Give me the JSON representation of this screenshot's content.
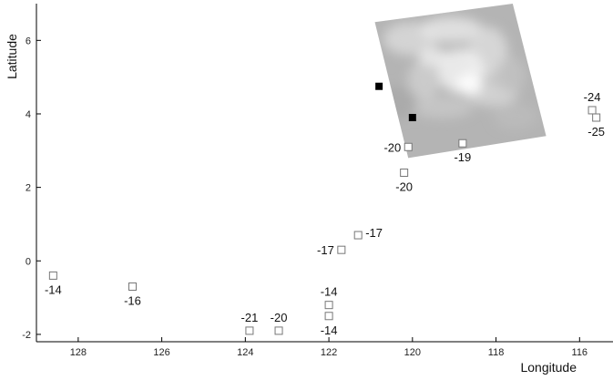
{
  "chart_data": {
    "type": "scatter",
    "title": "",
    "xlabel": "Longitude",
    "ylabel": "Latitude",
    "xlim": [
      129,
      115.2
    ],
    "ylim": [
      -2.2,
      7
    ],
    "x_reversed": true,
    "xticks": [
      128,
      126,
      124,
      122,
      120,
      118,
      116
    ],
    "yticks": [
      -2,
      0,
      2,
      4,
      6
    ],
    "grid": false,
    "legend": "none",
    "series": [
      {
        "marker": "open-square",
        "color": "#777777",
        "points": [
          {
            "x": 128.6,
            "y": -0.4,
            "label": "-14",
            "label_pos": "below"
          },
          {
            "x": 126.7,
            "y": -0.7,
            "label": "-16",
            "label_pos": "below"
          },
          {
            "x": 123.9,
            "y": -1.9,
            "label": "-21",
            "label_pos": "above"
          },
          {
            "x": 123.2,
            "y": -1.9,
            "label": "-20",
            "label_pos": "above"
          },
          {
            "x": 122.0,
            "y": -1.2,
            "label": "-14",
            "label_pos": "above"
          },
          {
            "x": 122.0,
            "y": -1.5,
            "label": "-14",
            "label_pos": "below"
          },
          {
            "x": 121.7,
            "y": 0.3,
            "label": "-17",
            "label_pos": "left"
          },
          {
            "x": 121.3,
            "y": 0.7,
            "label": "-17",
            "label_pos": "right"
          },
          {
            "x": 120.2,
            "y": 2.4,
            "label": "-20",
            "label_pos": "below"
          },
          {
            "x": 120.1,
            "y": 3.1,
            "label": "-20",
            "label_pos": "left"
          },
          {
            "x": 118.8,
            "y": 3.2,
            "label": "-19",
            "label_pos": "below"
          },
          {
            "x": 115.7,
            "y": 4.1,
            "label": "-24",
            "label_pos": "above"
          },
          {
            "x": 115.6,
            "y": 3.9,
            "label": "-25",
            "label_pos": "below"
          }
        ]
      },
      {
        "marker": "filled-square",
        "color": "#000000",
        "points": [
          {
            "x": 120.8,
            "y": 4.75
          },
          {
            "x": 120.0,
            "y": 3.9
          }
        ]
      }
    ],
    "inset_image": {
      "description_type": "grayscale-nebula-overlay",
      "color": "#b4b4b4",
      "corners": [
        {
          "x": 120.9,
          "y": 6.5
        },
        {
          "x": 117.6,
          "y": 7.0
        },
        {
          "x": 116.8,
          "y": 3.4
        },
        {
          "x": 120.1,
          "y": 2.8
        }
      ]
    }
  }
}
